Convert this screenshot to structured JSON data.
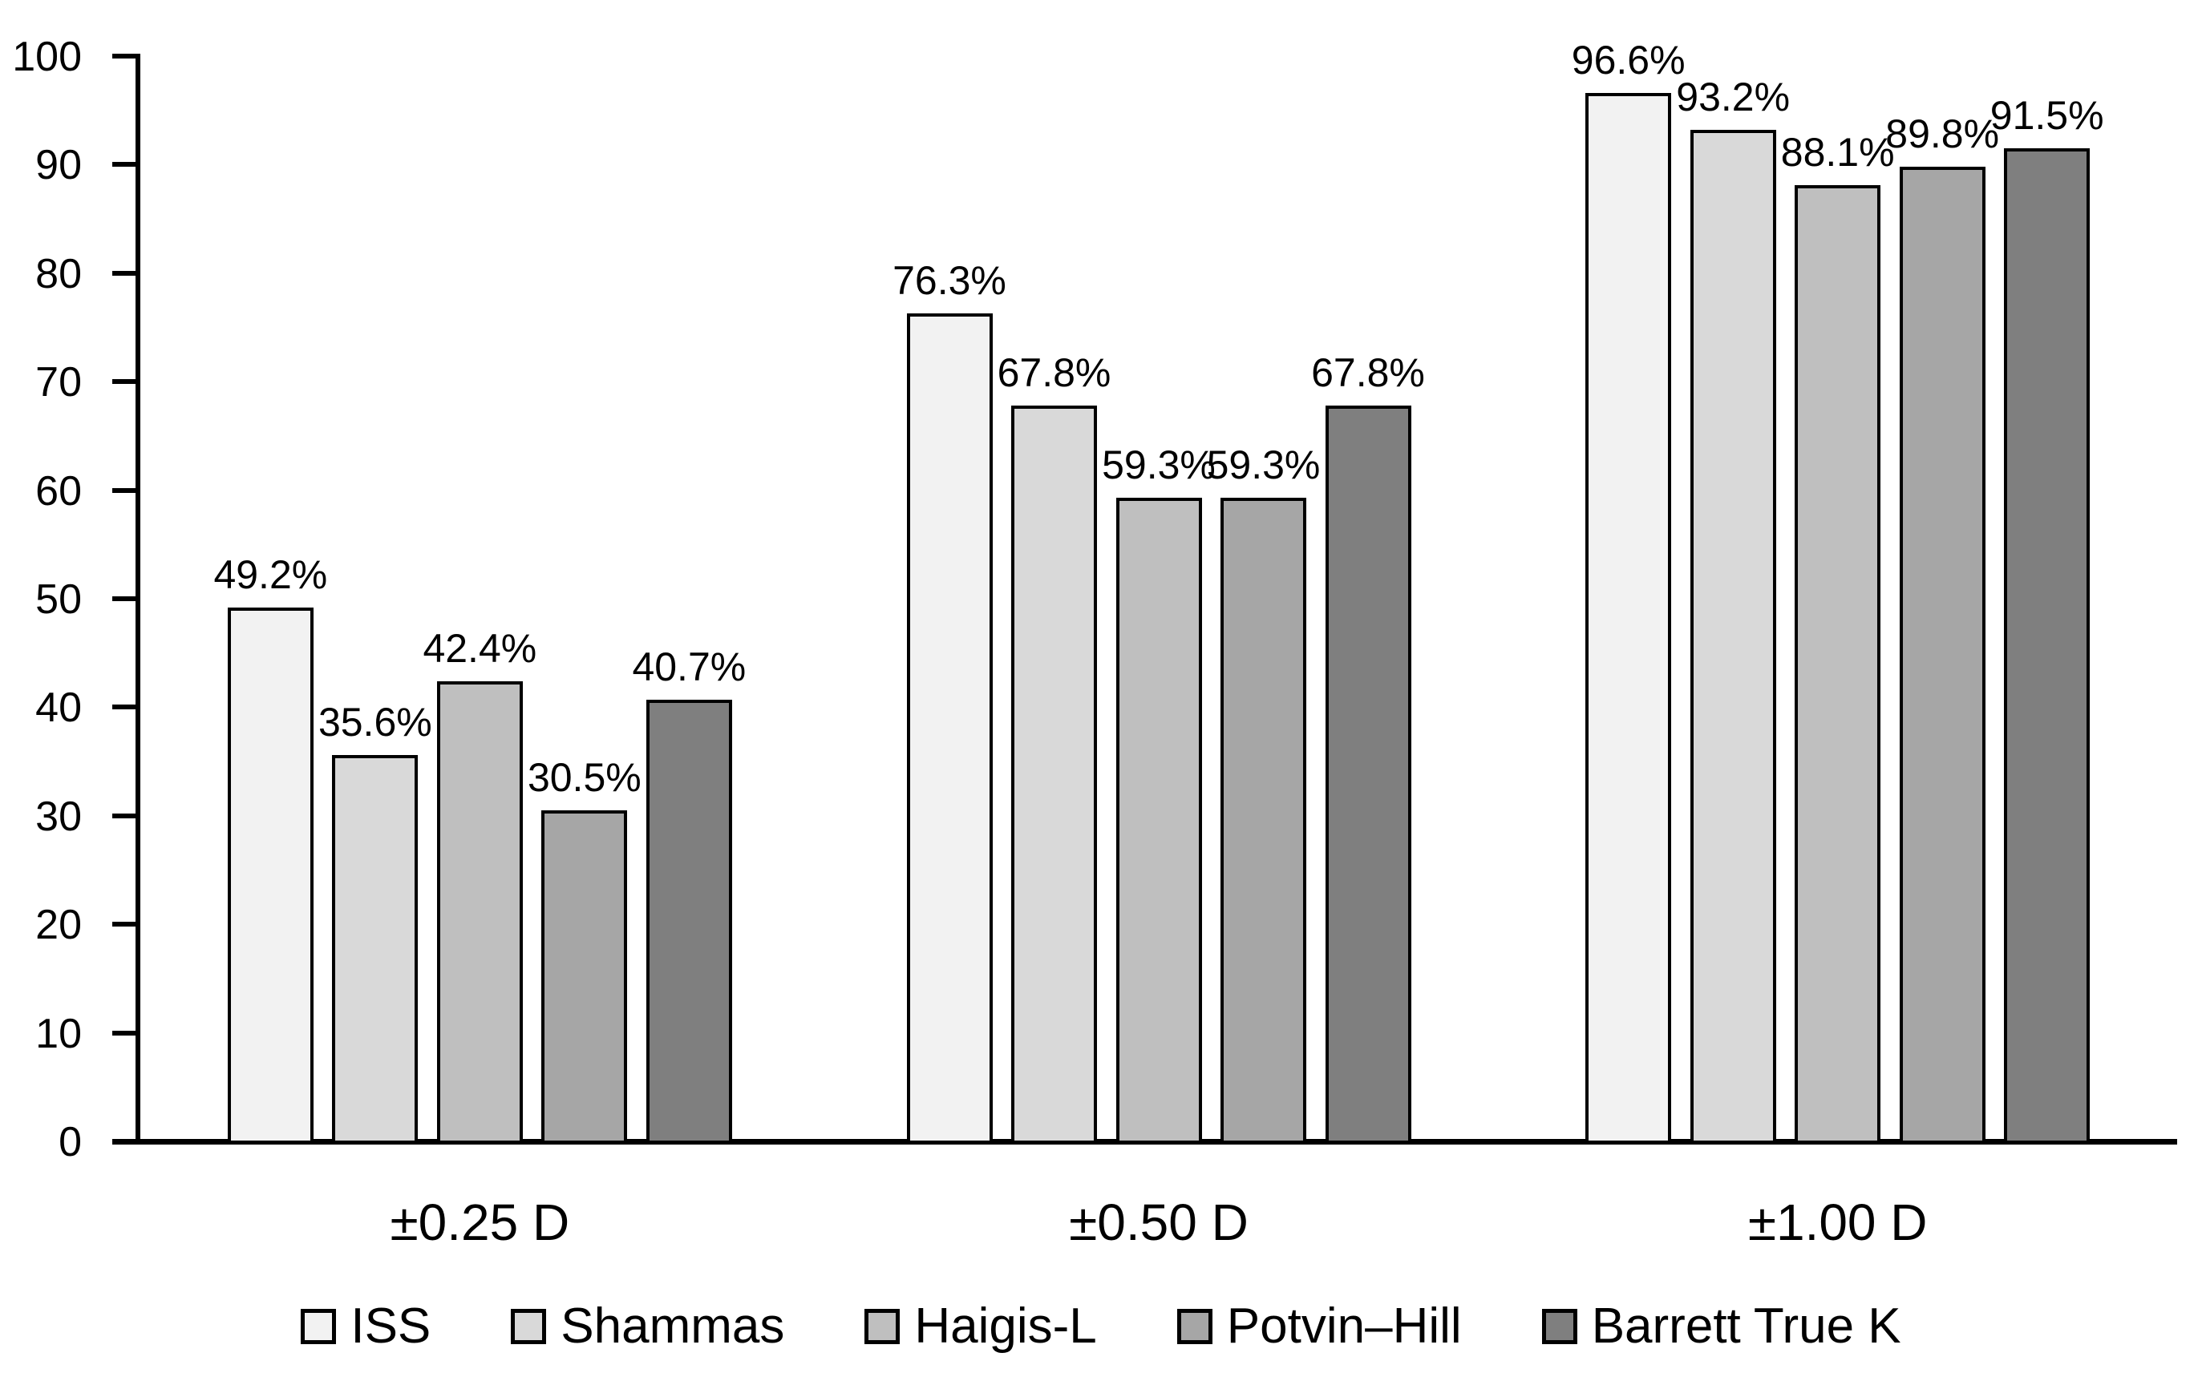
{
  "chart_data": {
    "type": "bar",
    "title": "",
    "xlabel": "",
    "ylabel": "",
    "categories": [
      "±0.25 D",
      "±0.50 D",
      "±1.00 D"
    ],
    "series": [
      {
        "name": "ISS",
        "color": "#f2f2f2",
        "values": [
          49.2,
          76.3,
          96.6
        ]
      },
      {
        "name": "Shammas",
        "color": "#d9d9d9",
        "values": [
          35.6,
          67.8,
          93.2
        ]
      },
      {
        "name": "Haigis-L",
        "color": "#bfbfbf",
        "values": [
          42.4,
          59.3,
          88.1
        ]
      },
      {
        "name": "Potvin–Hill",
        "color": "#a6a6a6",
        "values": [
          30.5,
          59.3,
          89.8
        ]
      },
      {
        "name": "Barrett True K",
        "color": "#7f7f7f",
        "values": [
          40.7,
          67.8,
          91.5
        ]
      }
    ],
    "data_labels": [
      [
        "49.2%",
        "76.3%",
        "96.6%"
      ],
      [
        "35.6%",
        "67.8%",
        "93.2%"
      ],
      [
        "42.4%",
        "59.3%",
        "88.1%"
      ],
      [
        "30.5%",
        "59.3%",
        "89.8%"
      ],
      [
        "40.7%",
        "67.8%",
        "91.5%"
      ]
    ],
    "ylim": [
      0,
      100
    ],
    "yticks": [
      0,
      10,
      20,
      30,
      40,
      50,
      60,
      70,
      80,
      90,
      100
    ],
    "grid": false,
    "legend_position": "bottom",
    "colors": {
      "background": "#ffffff",
      "axis": "#000000",
      "bar_border": "#000000",
      "text": "#000000"
    }
  }
}
